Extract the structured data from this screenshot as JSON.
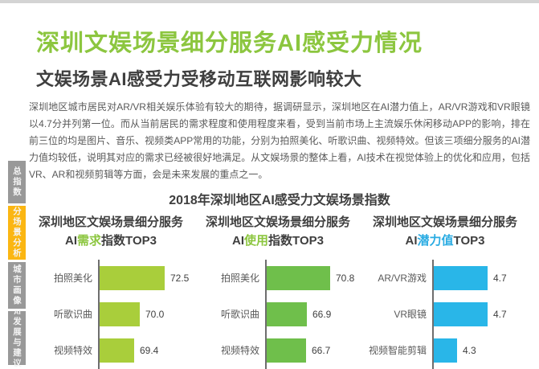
{
  "colors": {
    "topbar": "#d4d4d4",
    "accent_green": "#8CC63F",
    "accent_cyan": "#29ABE2",
    "sidebar_active": "#FBB612",
    "sidebar_inactive": "#999999"
  },
  "header": {
    "title": "深圳文娱场景细分服务AI感受力情况",
    "title_color": "#8CC63F",
    "subtitle": "文娱场景AI感受力受移动互联网影响较大"
  },
  "body_text": "深圳地区城市居民对AR/VR相关娱乐体验有较大的期待，据调研显示，深圳地区在AI潜力值上，AR/VR游戏和VR眼镜以4.7分并列第一位。而从当前居民的需求程度和使用程度来看，受到当前市场上主流娱乐休闲移动APP的影响，排在前三位的均是图片、音乐、视频类APP常用的功能，分别为拍照美化、听歌识曲、视频特效。但该三项细分服务的AI潜力值均较低，说明其对应的需求已经被很好地满足。从文娱场景的整体上看，AI技术在视觉体验上的优化和应用，包括VR、AR和视频剪辑等方面，会是未来发展的重点之一。",
  "section_title": "2018年深圳地区AI感受力文娱场景指数",
  "sidebar": {
    "items": [
      {
        "label": "总指数",
        "chars": [
          "总",
          "指",
          "数"
        ],
        "bg": "#999999",
        "active": false
      },
      {
        "label": "分场景分析",
        "chars": [
          "分",
          "场",
          "景",
          "分",
          "析"
        ],
        "bg": "#FBB612",
        "active": true
      },
      {
        "label": "城市画像",
        "chars": [
          "城",
          "市",
          "画",
          "像"
        ],
        "bg": "#999999",
        "active": false
      },
      {
        "label": "AI发展与建议",
        "chars": [
          "AI",
          "发",
          "展",
          "与",
          "建",
          "议"
        ],
        "bg": "#999999",
        "active": false
      }
    ]
  },
  "chart_data": [
    {
      "type": "bar",
      "orientation": "horizontal",
      "header_line1": "深圳地区文娱场景细分服务",
      "header_line2": {
        "prefix": "AI",
        "highlight": "需求",
        "suffix": "指数TOP3"
      },
      "highlight_color": "#8CC63F",
      "bar_color": "#A9CE3B",
      "categories": [
        "拍照美化",
        "听歌识曲",
        "视频特效"
      ],
      "values": [
        72.5,
        70.0,
        69.4
      ],
      "value_labels": [
        "72.5",
        "70.0",
        "69.4"
      ],
      "axis_min": 66.0,
      "axis_max": 74.0,
      "grid": false,
      "legend": false
    },
    {
      "type": "bar",
      "orientation": "horizontal",
      "header_line1": "深圳地区文娱场景细分服务",
      "header_line2": {
        "prefix": "AI",
        "highlight": "使用",
        "suffix": "指数TOP3"
      },
      "highlight_color": "#8CC63F",
      "bar_color": "#6FBF4B",
      "categories": [
        "拍照美化",
        "听歌识曲",
        "视频特效"
      ],
      "values": [
        70.8,
        66.9,
        66.7
      ],
      "value_labels": [
        "70.8",
        "66.9",
        "66.7"
      ],
      "axis_min": 60.2,
      "axis_max": 73.6,
      "grid": false,
      "legend": false
    },
    {
      "type": "bar",
      "orientation": "horizontal",
      "header_line1": "深圳地区文娱场景细分服务",
      "header_line2": {
        "prefix": "AI",
        "highlight": "潜力值",
        "suffix": "TOP3"
      },
      "highlight_color": "#29ABE2",
      "bar_color": "#29B6E8",
      "categories": [
        "AR/VR游戏",
        "VR眼镜",
        "视频智能剪辑"
      ],
      "values": [
        4.7,
        4.7,
        4.3
      ],
      "value_labels": [
        "4.7",
        "4.7",
        "4.3"
      ],
      "axis_min": 4.0,
      "axis_max": 5.05,
      "grid": false,
      "legend": false
    }
  ]
}
